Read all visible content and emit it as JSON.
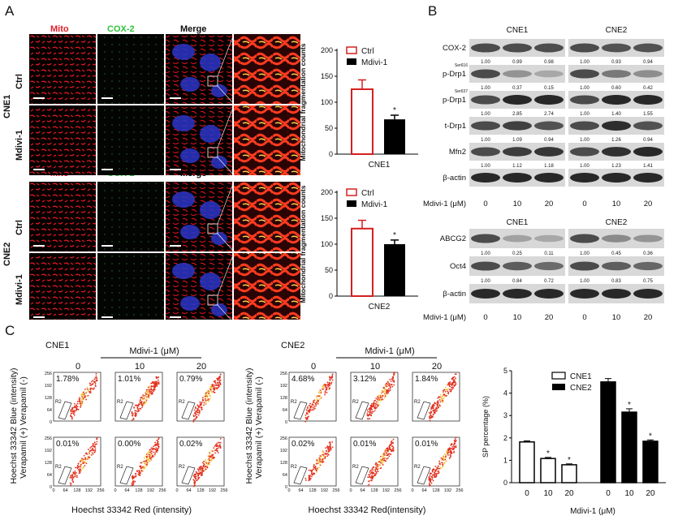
{
  "panels": {
    "a": "A",
    "b": "B",
    "c": "C"
  },
  "panel_a": {
    "channels": {
      "mito": "Mito",
      "cox2": "COX-2",
      "merge": "Merge"
    },
    "rows": {
      "ctrl": "Ctrl",
      "mdivi": "Mdivi-1"
    },
    "groups": [
      "CNE1",
      "CNE2"
    ],
    "colors": {
      "mito": "#e0202a",
      "cox2": "#2fc43a",
      "nucleus": "#3040d8"
    }
  },
  "chart_a": {
    "ylabel": "Mitochondrial fragmentation counts",
    "legend": [
      "Ctrl",
      "Mdivi-1"
    ],
    "ticks": [
      "200",
      "150",
      "100",
      "50",
      "0"
    ],
    "sig": "*"
  },
  "chart_data": [
    {
      "type": "bar",
      "title": "",
      "xlabel": "CNE1",
      "ylabel": "Mitochondrial fragmentation counts",
      "ylim": [
        0,
        200
      ],
      "categories": [
        "Ctrl",
        "Mdivi-1"
      ],
      "values": [
        125,
        67
      ],
      "errors": [
        18,
        8
      ]
    },
    {
      "type": "bar",
      "title": "",
      "xlabel": "CNE2",
      "ylabel": "Mitochondrial fragmentation counts",
      "ylim": [
        0,
        200
      ],
      "categories": [
        "Ctrl",
        "Mdivi-1"
      ],
      "values": [
        130,
        100
      ],
      "errors": [
        16,
        8
      ]
    },
    {
      "type": "bar",
      "title": "",
      "xlabel": "Mdivi-1 (μM)",
      "ylabel": "SP percentage (%)",
      "ylim": [
        0,
        5
      ],
      "categories": [
        "0",
        "10",
        "20"
      ],
      "series": [
        {
          "name": "CNE1",
          "values": [
            1.82,
            1.08,
            0.8
          ],
          "errors": [
            0.05,
            0.05,
            0.04
          ]
        },
        {
          "name": "CNE2",
          "values": [
            4.5,
            3.15,
            1.85
          ],
          "errors": [
            0.15,
            0.15,
            0.06
          ]
        }
      ]
    }
  ],
  "panel_b": {
    "groups": [
      "CNE1",
      "CNE2"
    ],
    "top": [
      {
        "name": "COX-2",
        "sup": "",
        "vals": [
          "1.00",
          "0.99",
          "0.98",
          "1.00",
          "0.93",
          "0.94"
        ]
      },
      {
        "name": "p-Drp1",
        "sup": "Ser616",
        "vals": [
          "1.00",
          "0.37",
          "0.15",
          "1.00",
          "0.60",
          "0.42"
        ]
      },
      {
        "name": "p-Drp1",
        "sup": "Ser637",
        "vals": [
          "1.00",
          "2.85",
          "2.74",
          "1.00",
          "1.40",
          "1.55"
        ]
      },
      {
        "name": "t-Drp1",
        "sup": "",
        "vals": [
          "1.00",
          "1.09",
          "0.94",
          "1.00",
          "1.26",
          "0.94"
        ]
      },
      {
        "name": "Mfn2",
        "sup": "",
        "vals": [
          "1.00",
          "1.12",
          "1.18",
          "1.00",
          "1.23",
          "1.41"
        ]
      },
      {
        "name": "β-actin",
        "sup": "",
        "vals": []
      }
    ],
    "bottom": [
      {
        "name": "ABCG2",
        "sup": "",
        "vals": [
          "1.00",
          "0.25",
          "0.11",
          "1.00",
          "0.45",
          "0.36"
        ]
      },
      {
        "name": "Oct4",
        "sup": "",
        "vals": [
          "1.00",
          "0.84",
          "0.72",
          "1.00",
          "0.83",
          "0.75"
        ]
      },
      {
        "name": "β-actin",
        "sup": "",
        "vals": []
      }
    ],
    "dose_label": "Mdivi-1 (μM)",
    "doses": [
      "0",
      "10",
      "20",
      "0",
      "10",
      "20"
    ]
  },
  "panel_c": {
    "title_mdivi": "Mdivi-1 (μM)",
    "doses": [
      "0",
      "10",
      "20"
    ],
    "ylabel_blue": "Hoechst 33342 Blue (intensity)",
    "ylabel_vera": "Verapamil (+) Verapamil (-)",
    "xlabel_cne1": "Hoechst 33342 Red (intensity)",
    "xlabel_cne2": "Hoechst 33342 Red(intensity)",
    "gate": "R2",
    "ticks_y": [
      "256",
      "192",
      "128",
      "64",
      "0"
    ],
    "ticks_x": [
      "0",
      "64",
      "128",
      "192",
      "256"
    ],
    "cne1": {
      "name": "CNE1",
      "minus": [
        "1.78%",
        "1.01%",
        "0.79%"
      ],
      "plus": [
        "0.01%",
        "0.00%",
        "0.02%"
      ]
    },
    "cne2": {
      "name": "CNE2",
      "minus": [
        "4.68%",
        "3.12%",
        "1.84%"
      ],
      "plus": [
        "0.02%",
        "0.01%",
        "0.01%"
      ]
    },
    "sp_chart": {
      "ylabel": "SP percentage (%)",
      "xlabel": "Mdivi-1 (μM)",
      "ticks": [
        "5",
        "4",
        "3",
        "2",
        "1",
        "0"
      ],
      "legend": [
        "CNE1",
        "CNE2"
      ],
      "sig": "*"
    }
  }
}
